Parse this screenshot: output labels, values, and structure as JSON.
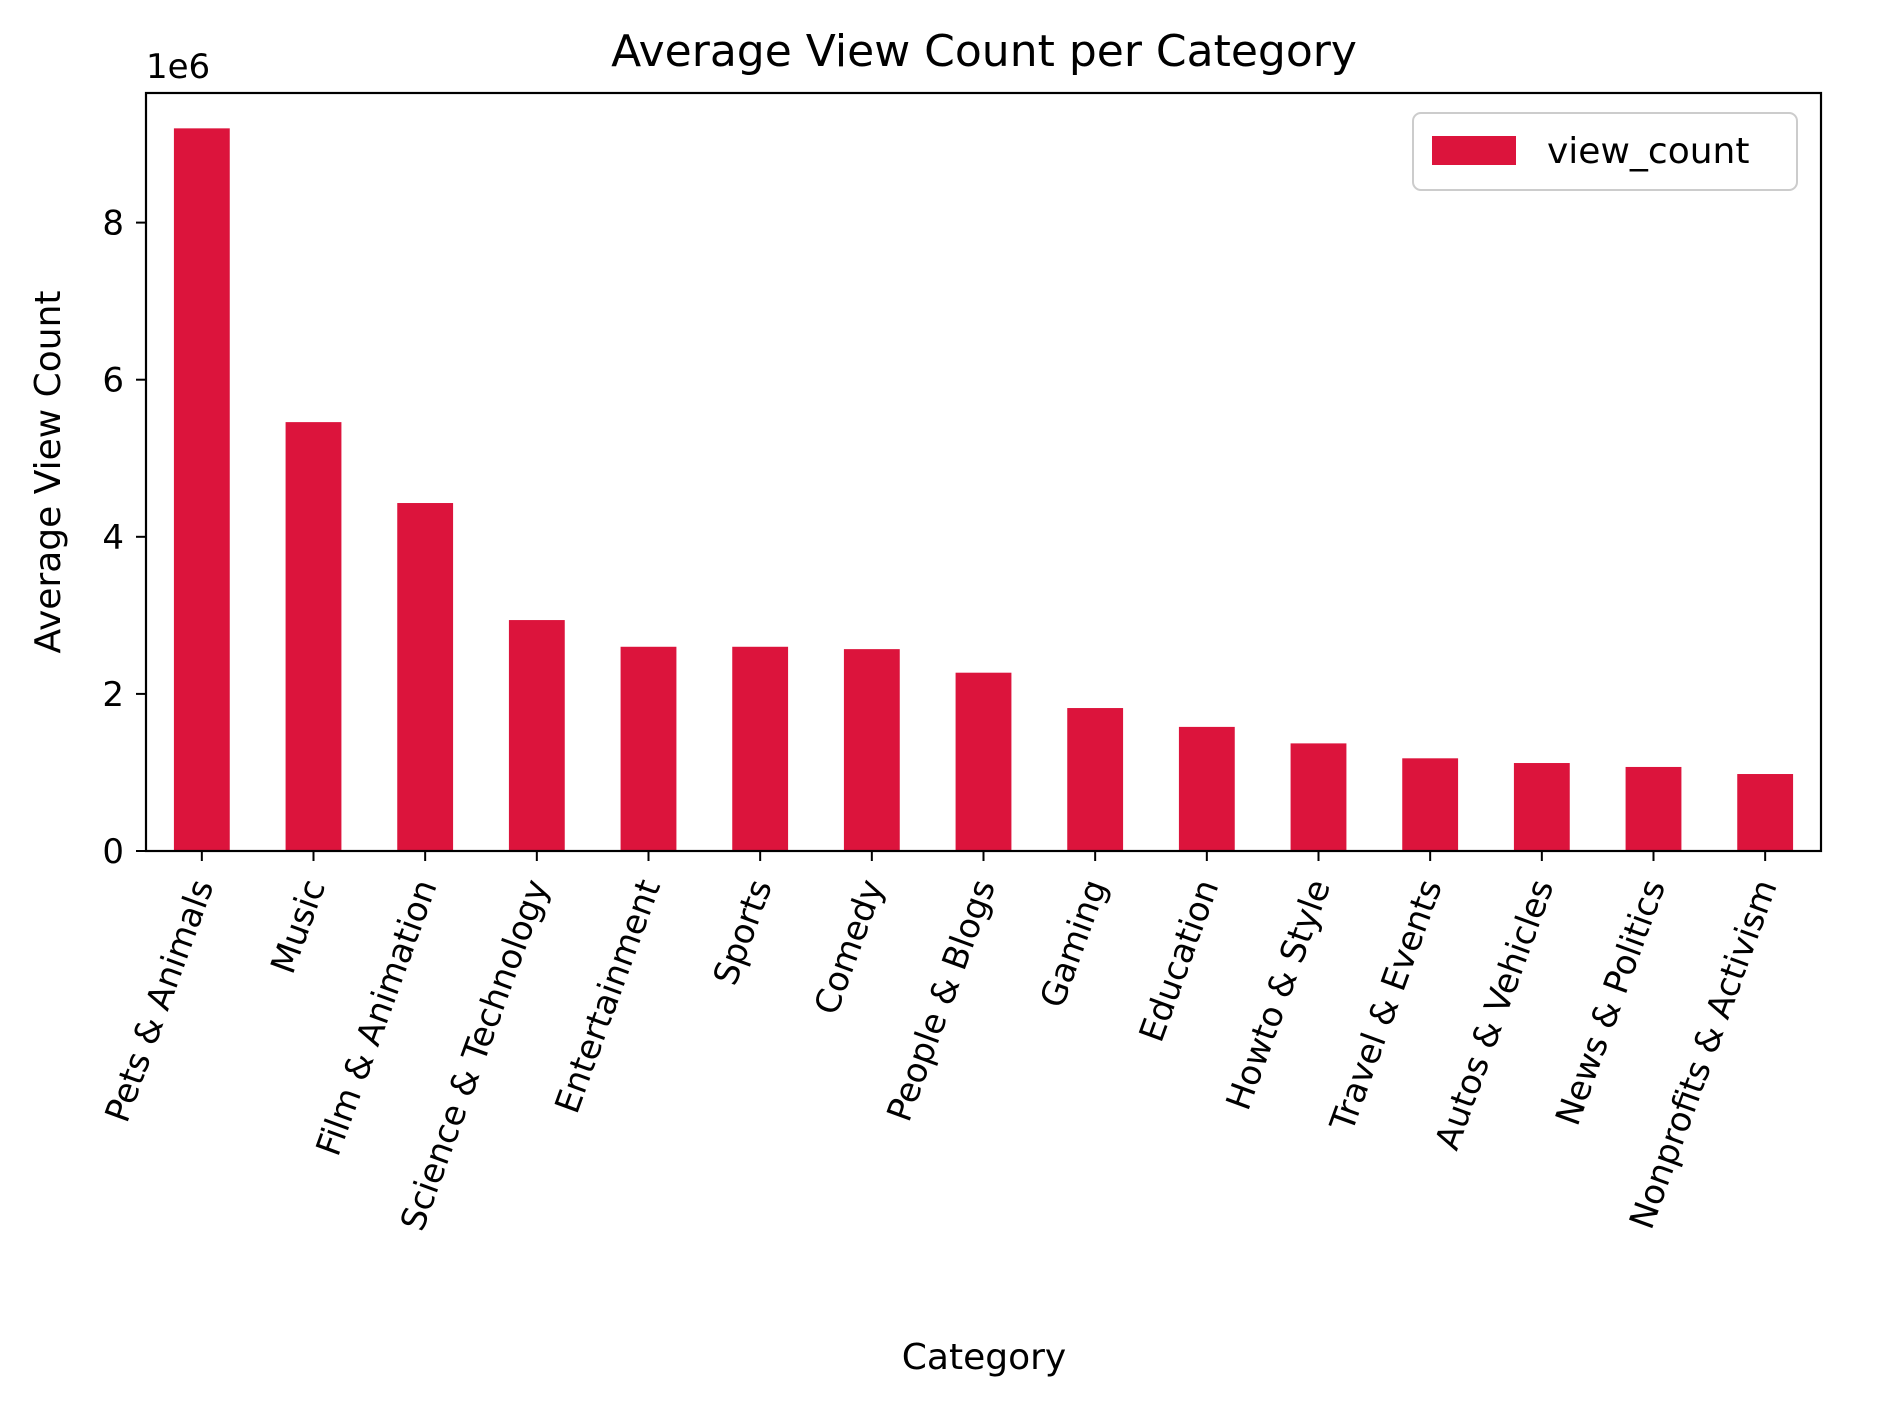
{
  "chart_data": {
    "type": "bar",
    "title": "Average View Count per Category",
    "xlabel": "Category",
    "ylabel": "Average View Count",
    "y_offset_label": "1e6",
    "y_scale": 1000000,
    "ylim": [
      0,
      9650000
    ],
    "yticks": [
      0,
      2000000,
      4000000,
      6000000,
      8000000
    ],
    "ytick_labels": [
      "0",
      "2",
      "4",
      "6",
      "8"
    ],
    "categories": [
      "Pets & Animals",
      "Music",
      "Film & Animation",
      "Science & Technology",
      "Entertainment",
      "Sports",
      "Comedy",
      "People & Blogs",
      "Gaming",
      "Education",
      "Howto & Style",
      "Travel & Events",
      "Autos & Vehicles",
      "News & Politics",
      "Nonprofits & Activism"
    ],
    "series": [
      {
        "name": "view_count",
        "color": "#dc143c",
        "values": [
          9200000,
          5460000,
          4430000,
          2940000,
          2600000,
          2600000,
          2570000,
          2270000,
          1820000,
          1580000,
          1370000,
          1180000,
          1120000,
          1070000,
          980000
        ]
      }
    ],
    "legend_position": "top-right",
    "grid": false
  }
}
